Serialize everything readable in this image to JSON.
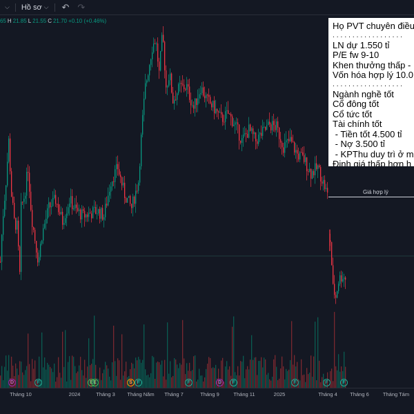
{
  "toolbar": {
    "settings_chevron": "⌵",
    "profile_label": "Hồ sơ",
    "profile_chevron": "⌵",
    "undo_icon": "undo-icon",
    "redo_icon": "redo-icon"
  },
  "legend": {
    "o_prefix": "",
    "o_value": "65",
    "h_label": "H",
    "h_value": "21.85",
    "l_label": "L",
    "l_value": "21.55",
    "c_label": "C",
    "c_value": "21.70",
    "change": "+0.10 (+0.46%)"
  },
  "note": {
    "title": "Họ PVT chuyên điều",
    "dots1": "..................",
    "lines_a": [
      "LN dự 1.550 tỉ",
      "P/E fw 9-10",
      "Khen thưởng thấp -",
      "Vốn hóa hợp lý 10.0"
    ],
    "dots2": "..................",
    "lines_b": [
      "Ngành nghề tốt",
      "Cổ đông tốt",
      "Cổ tức tốt",
      "Tài chính tốt",
      " - Tiền tốt 4.500 tỉ",
      " - Nợ 3.500 tỉ",
      " - KPThu duy trì ở m",
      "Định giá thấp hơn h"
    ]
  },
  "fair_value_label": "Giá hợp lý",
  "events": [
    {
      "letter": "D",
      "kind": "dividend"
    },
    {
      "letter": "F",
      "kind": "financials"
    },
    {
      "letter": "E",
      "kind": "earnings"
    },
    {
      "letter": "E",
      "kind": "earnings"
    },
    {
      "letter": "S",
      "kind": "split"
    },
    {
      "letter": "F",
      "kind": "financials"
    },
    {
      "letter": "F",
      "kind": "financials"
    },
    {
      "letter": "D",
      "kind": "dividend"
    },
    {
      "letter": "F",
      "kind": "financials"
    },
    {
      "letter": "F",
      "kind": "financials"
    },
    {
      "letter": "F",
      "kind": "financials"
    },
    {
      "letter": "F",
      "kind": "financials"
    }
  ],
  "x_axis": [
    "Tháng 10",
    "2024",
    "Tháng 3",
    "Tháng Năm",
    "Tháng 7",
    "Tháng 9",
    "Tháng 11",
    "2025",
    "Tháng 4",
    "Tháng 6",
    "Tháng Tám"
  ],
  "colors": {
    "up": "#089981",
    "down": "#f23645",
    "volume_up": "#0a5c52",
    "volume_down": "#7a2930",
    "background": "#141823"
  },
  "chart_data": {
    "type": "candlestick",
    "title": "",
    "price_trend": [
      [
        0,
        16.5
      ],
      [
        3,
        18.0
      ],
      [
        8,
        19.5
      ],
      [
        12,
        21.0
      ],
      [
        16,
        19.0
      ],
      [
        20,
        18.0
      ],
      [
        24,
        17.8
      ],
      [
        28,
        16.0
      ],
      [
        30,
        18.5
      ],
      [
        35,
        19.0
      ],
      [
        40,
        20.0
      ],
      [
        45,
        18.2
      ],
      [
        55,
        16.5
      ],
      [
        60,
        17.5
      ],
      [
        70,
        18.5
      ],
      [
        80,
        18.8
      ],
      [
        90,
        18.0
      ],
      [
        100,
        18.8
      ],
      [
        110,
        18.4
      ],
      [
        120,
        18.2
      ],
      [
        130,
        18.3
      ],
      [
        140,
        18.4
      ],
      [
        150,
        18.2
      ],
      [
        160,
        19.5
      ],
      [
        170,
        20.0
      ],
      [
        180,
        19.0
      ],
      [
        190,
        18.5
      ],
      [
        200,
        19.5
      ],
      [
        205,
        21.5
      ],
      [
        210,
        23.0
      ],
      [
        220,
        24.5
      ],
      [
        225,
        24.8
      ],
      [
        230,
        23.5
      ],
      [
        235,
        25.0
      ],
      [
        240,
        23.0
      ],
      [
        245,
        23.5
      ],
      [
        250,
        22.5
      ],
      [
        260,
        23.0
      ],
      [
        270,
        23.0
      ],
      [
        280,
        22.2
      ],
      [
        290,
        23.0
      ],
      [
        300,
        22.5
      ],
      [
        310,
        22.2
      ],
      [
        320,
        21.8
      ],
      [
        330,
        22.0
      ],
      [
        340,
        21.6
      ],
      [
        350,
        21.0
      ],
      [
        360,
        21.4
      ],
      [
        370,
        21.0
      ],
      [
        380,
        21.3
      ],
      [
        390,
        21.6
      ],
      [
        400,
        21.5
      ],
      [
        410,
        20.8
      ],
      [
        420,
        21.0
      ],
      [
        430,
        20.5
      ],
      [
        440,
        20.3
      ],
      [
        450,
        19.8
      ],
      [
        460,
        20.0
      ],
      [
        470,
        19.3
      ],
      [
        475,
        18.9
      ]
    ],
    "post_gap_trend": [
      [
        478,
        17.3
      ],
      [
        482,
        15.5
      ],
      [
        486,
        15.2
      ],
      [
        490,
        15.8
      ],
      [
        495,
        16.0
      ],
      [
        500,
        15.9
      ]
    ],
    "fair_value_marker": 18.9,
    "last_close": 21.7
  }
}
